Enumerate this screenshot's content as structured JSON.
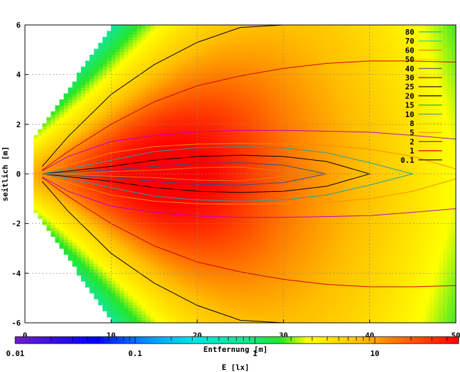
{
  "chart_data": {
    "type": "heatmap",
    "xlabel": "Entfernung [m]",
    "ylabel": "seitlich [m]",
    "colorbar_label": "E [lx]",
    "xlim": [
      0,
      50
    ],
    "ylim": [
      -6,
      6
    ],
    "x_ticks": [
      "0",
      "10",
      "20",
      "30",
      "40",
      "50"
    ],
    "y_ticks": [
      "6",
      "4",
      "2",
      "0",
      "-2",
      "-4",
      "-6"
    ],
    "colorbar_ticks": [
      "0.01",
      "0.1",
      "1",
      "10"
    ],
    "colorbar_scale": "log",
    "colorbar_range": [
      0.01,
      50
    ],
    "grid": true,
    "legend_position": "top-right",
    "contour_levels": [
      {
        "label": "80",
        "color": "#00c0c0"
      },
      {
        "label": "70",
        "color": "#00d0d0"
      },
      {
        "label": "60",
        "color": "#e08000"
      },
      {
        "label": "50",
        "color": "#e0e000"
      },
      {
        "label": "40",
        "color": "#2050a0"
      },
      {
        "label": "30",
        "color": "#c00000"
      },
      {
        "label": "25",
        "color": "#000000"
      },
      {
        "label": "20",
        "color": "#000000"
      },
      {
        "label": "15",
        "color": "#20c020"
      },
      {
        "label": "10",
        "color": "#20a0a0"
      },
      {
        "label": "8",
        "color": "#e0e000"
      },
      {
        "label": "5",
        "color": "#ff8c00"
      },
      {
        "label": "2",
        "color": "#c000c0"
      },
      {
        "label": "1",
        "color": "#d00000"
      },
      {
        "label": "0.1",
        "color": "#000000"
      }
    ],
    "contours_drawn": [
      {
        "level": 0.1,
        "hw": [
          0.3,
          1.5,
          3.2,
          4.4,
          5.3,
          5.9,
          6.0,
          6.0,
          6.0,
          6.0,
          6.0
        ]
      },
      {
        "level": 1,
        "hw": [
          0.15,
          0.9,
          2.0,
          2.9,
          3.55,
          3.95,
          4.25,
          4.45,
          4.55,
          4.55,
          4.5
        ]
      },
      {
        "level": 2,
        "hw": [
          0.12,
          0.7,
          1.3,
          1.55,
          1.7,
          1.75,
          1.75,
          1.72,
          1.68,
          1.55,
          1.4
        ]
      },
      {
        "level": 5,
        "hw": [
          0.05,
          0.35,
          0.85,
          1.1,
          1.2,
          1.22,
          1.2,
          1.15,
          1.0,
          0.7,
          0.2
        ]
      },
      {
        "level": 10,
        "hw": [
          0.0,
          0.2,
          0.55,
          0.9,
          1.05,
          1.1,
          1.05,
          0.85,
          0.45,
          0.0,
          0.0
        ]
      },
      {
        "level": 20,
        "hw": [
          0.0,
          0.0,
          0.3,
          0.55,
          0.7,
          0.75,
          0.7,
          0.5,
          0.0,
          0.0,
          0.0
        ]
      },
      {
        "level": 40,
        "hw": [
          0.0,
          0.0,
          0.15,
          0.3,
          0.42,
          0.45,
          0.35,
          0.0,
          0.0,
          0.0,
          0.0
        ]
      },
      {
        "level": 60,
        "hw": [
          0.0,
          0.0,
          0.0,
          0.15,
          0.25,
          0.28,
          0.1,
          0.0,
          0.0,
          0.0,
          0.0
        ]
      }
    ],
    "contour_x": [
      2,
      5,
      10,
      15,
      20,
      25,
      30,
      35,
      40,
      45,
      50
    ]
  }
}
